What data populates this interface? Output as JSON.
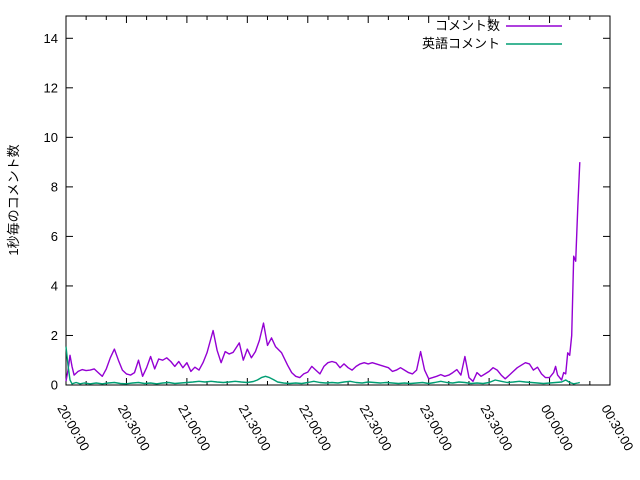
{
  "chart": {
    "ylabel": "1秒毎のコメント数",
    "legend": {
      "position": "top-right-inside",
      "items": [
        {
          "label": "コメント数",
          "color": "#9400d3"
        },
        {
          "label": "英語コメント",
          "color": "#009e73"
        }
      ]
    },
    "frame_color": "#000000",
    "background_color": "#ffffff"
  },
  "chart_data": {
    "type": "line",
    "title": "",
    "xlabel": "",
    "ylabel": "1秒毎のコメント数",
    "x_axis": {
      "kind": "time",
      "tick_labels": [
        "20:00:00",
        "20:30:00",
        "21:00:00",
        "21:30:00",
        "22:00:00",
        "22:30:00",
        "23:00:00",
        "23:30:00",
        "00:00:00",
        "00:30:00"
      ],
      "tick_minutes": [
        0,
        30,
        60,
        90,
        120,
        150,
        180,
        210,
        240,
        270
      ],
      "minor_tick_step_minutes": 10,
      "range_minutes": [
        0,
        270
      ],
      "label_rotation_deg": 60
    },
    "y_axis": {
      "ticks": [
        0,
        2,
        4,
        6,
        8,
        10,
        12,
        14
      ],
      "range": [
        0,
        14.9
      ],
      "minor_ticks": false
    },
    "grid": false,
    "legend_position": "top-right-inside",
    "series": [
      {
        "name": "コメント数",
        "color": "#9400d3",
        "points": [
          [
            0,
            0.15
          ],
          [
            1,
            0.6
          ],
          [
            2,
            1.2
          ],
          [
            3,
            0.75
          ],
          [
            4,
            0.4
          ],
          [
            6,
            0.55
          ],
          [
            8,
            0.62
          ],
          [
            10,
            0.58
          ],
          [
            12,
            0.6
          ],
          [
            14,
            0.65
          ],
          [
            16,
            0.5
          ],
          [
            18,
            0.35
          ],
          [
            20,
            0.65
          ],
          [
            22,
            1.1
          ],
          [
            24,
            1.45
          ],
          [
            26,
            1.0
          ],
          [
            28,
            0.6
          ],
          [
            30,
            0.45
          ],
          [
            32,
            0.4
          ],
          [
            34,
            0.5
          ],
          [
            36,
            1.0
          ],
          [
            38,
            0.35
          ],
          [
            40,
            0.7
          ],
          [
            42,
            1.15
          ],
          [
            44,
            0.65
          ],
          [
            46,
            1.05
          ],
          [
            48,
            1.0
          ],
          [
            50,
            1.1
          ],
          [
            52,
            0.95
          ],
          [
            54,
            0.75
          ],
          [
            56,
            0.95
          ],
          [
            58,
            0.7
          ],
          [
            60,
            0.9
          ],
          [
            62,
            0.55
          ],
          [
            64,
            0.72
          ],
          [
            66,
            0.6
          ],
          [
            68,
            0.9
          ],
          [
            70,
            1.3
          ],
          [
            73,
            2.2
          ],
          [
            75,
            1.4
          ],
          [
            77,
            0.9
          ],
          [
            79,
            1.35
          ],
          [
            81,
            1.25
          ],
          [
            83,
            1.32
          ],
          [
            86,
            1.7
          ],
          [
            88,
            1.0
          ],
          [
            90,
            1.45
          ],
          [
            92,
            1.1
          ],
          [
            94,
            1.35
          ],
          [
            96,
            1.8
          ],
          [
            98,
            2.5
          ],
          [
            100,
            1.6
          ],
          [
            102,
            1.9
          ],
          [
            104,
            1.55
          ],
          [
            107,
            1.3
          ],
          [
            110,
            0.8
          ],
          [
            112,
            0.5
          ],
          [
            114,
            0.35
          ],
          [
            116,
            0.3
          ],
          [
            118,
            0.45
          ],
          [
            120,
            0.52
          ],
          [
            122,
            0.75
          ],
          [
            124,
            0.6
          ],
          [
            126,
            0.45
          ],
          [
            128,
            0.75
          ],
          [
            130,
            0.9
          ],
          [
            132,
            0.95
          ],
          [
            134,
            0.9
          ],
          [
            136,
            0.7
          ],
          [
            138,
            0.85
          ],
          [
            140,
            0.7
          ],
          [
            142,
            0.6
          ],
          [
            144,
            0.75
          ],
          [
            146,
            0.85
          ],
          [
            148,
            0.9
          ],
          [
            150,
            0.85
          ],
          [
            152,
            0.9
          ],
          [
            154,
            0.85
          ],
          [
            156,
            0.8
          ],
          [
            158,
            0.75
          ],
          [
            160,
            0.7
          ],
          [
            162,
            0.55
          ],
          [
            164,
            0.6
          ],
          [
            166,
            0.7
          ],
          [
            168,
            0.6
          ],
          [
            170,
            0.5
          ],
          [
            172,
            0.45
          ],
          [
            174,
            0.6
          ],
          [
            176,
            1.35
          ],
          [
            178,
            0.6
          ],
          [
            180,
            0.25
          ],
          [
            182,
            0.3
          ],
          [
            184,
            0.35
          ],
          [
            186,
            0.42
          ],
          [
            188,
            0.35
          ],
          [
            190,
            0.4
          ],
          [
            192,
            0.5
          ],
          [
            194,
            0.62
          ],
          [
            196,
            0.4
          ],
          [
            198,
            1.15
          ],
          [
            200,
            0.3
          ],
          [
            202,
            0.15
          ],
          [
            204,
            0.5
          ],
          [
            206,
            0.35
          ],
          [
            208,
            0.45
          ],
          [
            210,
            0.55
          ],
          [
            212,
            0.7
          ],
          [
            214,
            0.6
          ],
          [
            216,
            0.4
          ],
          [
            218,
            0.25
          ],
          [
            220,
            0.4
          ],
          [
            222,
            0.55
          ],
          [
            224,
            0.7
          ],
          [
            226,
            0.8
          ],
          [
            228,
            0.9
          ],
          [
            230,
            0.85
          ],
          [
            232,
            0.6
          ],
          [
            234,
            0.72
          ],
          [
            236,
            0.45
          ],
          [
            238,
            0.3
          ],
          [
            240,
            0.3
          ],
          [
            242,
            0.5
          ],
          [
            243,
            0.75
          ],
          [
            244,
            0.4
          ],
          [
            246,
            0.2
          ],
          [
            247,
            0.5
          ],
          [
            248,
            0.45
          ],
          [
            249,
            1.3
          ],
          [
            250,
            1.2
          ],
          [
            251,
            2.0
          ],
          [
            252,
            5.2
          ],
          [
            253,
            5.0
          ],
          [
            254,
            7.2
          ],
          [
            255,
            9.0
          ]
        ]
      },
      {
        "name": "英語コメント",
        "color": "#009e73",
        "points": [
          [
            0,
            1.55
          ],
          [
            1,
            0.8
          ],
          [
            2,
            0.2
          ],
          [
            3,
            0.05
          ],
          [
            5,
            0.1
          ],
          [
            7,
            0.05
          ],
          [
            9,
            0.08
          ],
          [
            12,
            0.05
          ],
          [
            15,
            0.08
          ],
          [
            18,
            0.05
          ],
          [
            21,
            0.08
          ],
          [
            24,
            0.1
          ],
          [
            27,
            0.06
          ],
          [
            30,
            0.05
          ],
          [
            33,
            0.08
          ],
          [
            36,
            0.1
          ],
          [
            39,
            0.06
          ],
          [
            42,
            0.08
          ],
          [
            45,
            0.05
          ],
          [
            48,
            0.08
          ],
          [
            51,
            0.1
          ],
          [
            54,
            0.06
          ],
          [
            57,
            0.08
          ],
          [
            60,
            0.1
          ],
          [
            63,
            0.12
          ],
          [
            66,
            0.15
          ],
          [
            69,
            0.12
          ],
          [
            72,
            0.15
          ],
          [
            75,
            0.12
          ],
          [
            78,
            0.1
          ],
          [
            81,
            0.12
          ],
          [
            84,
            0.15
          ],
          [
            87,
            0.12
          ],
          [
            90,
            0.1
          ],
          [
            93,
            0.14
          ],
          [
            95,
            0.2
          ],
          [
            97,
            0.3
          ],
          [
            99,
            0.35
          ],
          [
            101,
            0.3
          ],
          [
            103,
            0.22
          ],
          [
            105,
            0.12
          ],
          [
            108,
            0.08
          ],
          [
            111,
            0.06
          ],
          [
            114,
            0.08
          ],
          [
            117,
            0.06
          ],
          [
            120,
            0.1
          ],
          [
            123,
            0.15
          ],
          [
            126,
            0.1
          ],
          [
            129,
            0.08
          ],
          [
            132,
            0.1
          ],
          [
            135,
            0.08
          ],
          [
            138,
            0.12
          ],
          [
            141,
            0.15
          ],
          [
            144,
            0.1
          ],
          [
            147,
            0.08
          ],
          [
            150,
            0.12
          ],
          [
            153,
            0.1
          ],
          [
            156,
            0.08
          ],
          [
            159,
            0.1
          ],
          [
            162,
            0.08
          ],
          [
            165,
            0.06
          ],
          [
            168,
            0.08
          ],
          [
            171,
            0.06
          ],
          [
            174,
            0.08
          ],
          [
            177,
            0.1
          ],
          [
            180,
            0.06
          ],
          [
            183,
            0.1
          ],
          [
            186,
            0.15
          ],
          [
            189,
            0.1
          ],
          [
            192,
            0.08
          ],
          [
            195,
            0.12
          ],
          [
            198,
            0.1
          ],
          [
            201,
            0.06
          ],
          [
            204,
            0.08
          ],
          [
            207,
            0.06
          ],
          [
            210,
            0.1
          ],
          [
            213,
            0.2
          ],
          [
            216,
            0.15
          ],
          [
            219,
            0.1
          ],
          [
            222,
            0.12
          ],
          [
            225,
            0.15
          ],
          [
            228,
            0.12
          ],
          [
            231,
            0.1
          ],
          [
            234,
            0.08
          ],
          [
            237,
            0.06
          ],
          [
            240,
            0.08
          ],
          [
            243,
            0.1
          ],
          [
            246,
            0.12
          ],
          [
            248,
            0.2
          ],
          [
            250,
            0.1
          ],
          [
            252,
            0.05
          ],
          [
            254,
            0.08
          ],
          [
            255,
            0.1
          ]
        ]
      }
    ]
  }
}
